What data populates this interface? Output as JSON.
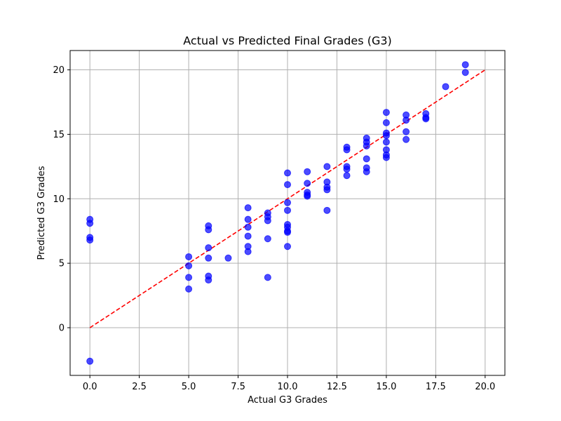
{
  "chart_data": {
    "type": "scatter",
    "title": "Actual vs Predicted Final Grades (G3)",
    "xlabel": "Actual G3 Grades",
    "ylabel": "Predicted G3 Grades",
    "xlim": [
      -1.0,
      21.0
    ],
    "ylim": [
      -3.7,
      21.5
    ],
    "xticks": [
      0.0,
      2.5,
      5.0,
      7.5,
      10.0,
      12.5,
      15.0,
      17.5,
      20.0
    ],
    "xtick_labels": [
      "0.0",
      "2.5",
      "5.0",
      "7.5",
      "10.0",
      "12.5",
      "15.0",
      "17.5",
      "20.0"
    ],
    "yticks": [
      0,
      5,
      10,
      15,
      20
    ],
    "ytick_labels": [
      "0",
      "5",
      "10",
      "15",
      "20"
    ],
    "grid": true,
    "point_color": "#0000ff",
    "point_alpha": 0.7,
    "reference_line": {
      "x": [
        0,
        20
      ],
      "y": [
        0,
        20
      ],
      "color": "#ff0000",
      "style": "dashed"
    },
    "series": [
      {
        "points": [
          [
            0,
            8.4
          ],
          [
            0,
            8.1
          ],
          [
            0,
            7.0
          ],
          [
            0,
            6.8
          ],
          [
            0,
            -2.6
          ],
          [
            5,
            5.5
          ],
          [
            5,
            4.8
          ],
          [
            5,
            3.9
          ],
          [
            5,
            3.0
          ],
          [
            6,
            7.9
          ],
          [
            6,
            7.6
          ],
          [
            6,
            6.2
          ],
          [
            6,
            5.4
          ],
          [
            6,
            4.0
          ],
          [
            6,
            3.7
          ],
          [
            7,
            5.4
          ],
          [
            8,
            9.3
          ],
          [
            8,
            8.4
          ],
          [
            8,
            7.8
          ],
          [
            8,
            7.1
          ],
          [
            8,
            6.3
          ],
          [
            8,
            5.9
          ],
          [
            9,
            8.9
          ],
          [
            9,
            8.6
          ],
          [
            9,
            8.3
          ],
          [
            9,
            6.9
          ],
          [
            9,
            3.9
          ],
          [
            10,
            12.0
          ],
          [
            10,
            11.1
          ],
          [
            10,
            9.7
          ],
          [
            10,
            9.1
          ],
          [
            10,
            8.0
          ],
          [
            10,
            7.8
          ],
          [
            10,
            7.5
          ],
          [
            10,
            7.4
          ],
          [
            10,
            6.3
          ],
          [
            11,
            12.1
          ],
          [
            11,
            11.2
          ],
          [
            11,
            10.5
          ],
          [
            11,
            10.3
          ],
          [
            11,
            10.2
          ],
          [
            12,
            12.5
          ],
          [
            12,
            11.3
          ],
          [
            12,
            10.9
          ],
          [
            12,
            10.7
          ],
          [
            12,
            9.1
          ],
          [
            13,
            14.0
          ],
          [
            13,
            13.8
          ],
          [
            13,
            12.5
          ],
          [
            13,
            12.3
          ],
          [
            13,
            11.8
          ],
          [
            14,
            14.7
          ],
          [
            14,
            14.4
          ],
          [
            14,
            14.1
          ],
          [
            14,
            13.1
          ],
          [
            14,
            12.4
          ],
          [
            14,
            12.1
          ],
          [
            15,
            16.7
          ],
          [
            15,
            15.9
          ],
          [
            15,
            15.1
          ],
          [
            15,
            14.9
          ],
          [
            15,
            14.4
          ],
          [
            15,
            13.8
          ],
          [
            15,
            13.4
          ],
          [
            15,
            13.2
          ],
          [
            16,
            16.5
          ],
          [
            16,
            16.1
          ],
          [
            16,
            15.2
          ],
          [
            16,
            14.6
          ],
          [
            17,
            16.6
          ],
          [
            17,
            16.3
          ],
          [
            17,
            16.2
          ],
          [
            18,
            18.7
          ],
          [
            19,
            20.4
          ],
          [
            19,
            19.8
          ]
        ]
      }
    ]
  }
}
